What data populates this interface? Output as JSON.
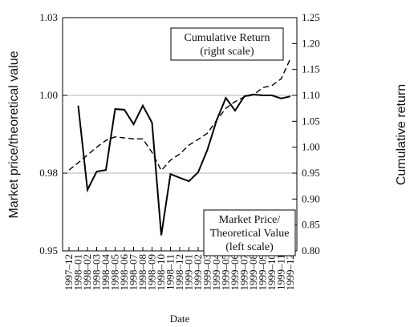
{
  "chart_data": {
    "type": "line",
    "x_label": "Date",
    "y_label": "Market price/theoretical value",
    "y2_label": "Cumulative return",
    "categories": [
      "1997–12",
      "1998–01",
      "1998–02",
      "1998–03",
      "1998–04",
      "1998–05",
      "1998–06",
      "1998–07",
      "1998–08",
      "1998–09",
      "1998–10",
      "1998–11",
      "1998–12",
      "1999–01",
      "1999–02",
      "1999–03",
      "1999–04",
      "1999–05",
      "1999–06",
      "1999–07",
      "1999–08",
      "1999–09",
      "1999–10",
      "1999–11",
      "1999–12"
    ],
    "series": [
      {
        "color": "#000000",
        "dash": "solid",
        "values": [
          null,
          0.9967,
          0.9696,
          0.9755,
          0.976,
          0.9956,
          0.9954,
          0.9907,
          0.9967,
          0.9912,
          0.955,
          0.9747,
          0.9735,
          0.9724,
          0.9753,
          0.9825,
          0.992,
          0.9992,
          0.9951,
          0.9997,
          1.0003,
          1.0,
          1.0,
          0.999,
          0.9997
        ]
      },
      {
        "color": "#000000",
        "dash": "dashed",
        "axis": "y2",
        "values": [
          0.956,
          0.97,
          0.985,
          1.0,
          1.013,
          1.02,
          1.018,
          1.016,
          1.016,
          0.99,
          0.955,
          0.975,
          0.987,
          1.004,
          1.015,
          1.027,
          1.052,
          1.075,
          1.088,
          1.097,
          1.101,
          1.115,
          1.119,
          1.132,
          1.171
        ]
      }
    ],
    "ylim": [
      0.95,
      1.025
    ],
    "yticks": [
      0.95,
      {
        "value": 0.975,
        "label": "0.98"
      },
      {
        "value": 1,
        "label": "1.00"
      },
      {
        "value": 1.025,
        "label": "1.03"
      }
    ],
    "y2lim": [
      0.8,
      1.25
    ],
    "y2ticks": [
      {
        "value": 0.8,
        "label": "0.80"
      },
      0.85,
      {
        "value": 0.9,
        "label": "0.90"
      },
      0.95,
      {
        "value": 1,
        "label": "1.00"
      },
      1.05,
      {
        "value": 1.1,
        "label": "1.10"
      },
      1.15,
      {
        "value": 1.2,
        "label": "1.20"
      },
      1.25
    ],
    "grid": true,
    "annotations": [
      {
        "lines": [
          "Cumulative Return",
          "(right scale)"
        ]
      },
      {
        "lines": [
          "Market Price/",
          "Theoretical Value",
          "(left scale)"
        ]
      }
    ]
  }
}
